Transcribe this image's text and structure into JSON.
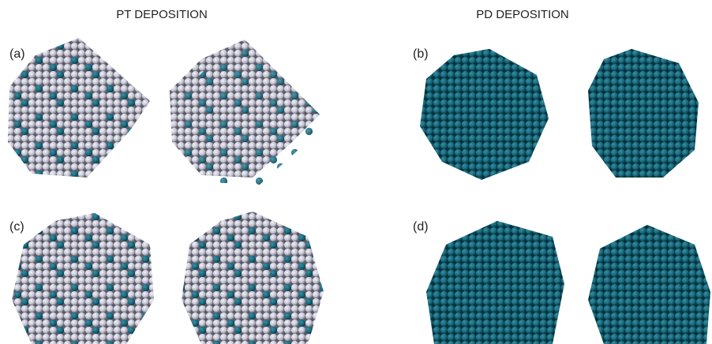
{
  "headers": {
    "left": "PT DEPOSITION",
    "right": "PD DEPOSITION"
  },
  "panels": [
    {
      "label": "(a)"
    },
    {
      "label": "(b)"
    },
    {
      "label": "(c)"
    },
    {
      "label": "(d)"
    }
  ]
}
